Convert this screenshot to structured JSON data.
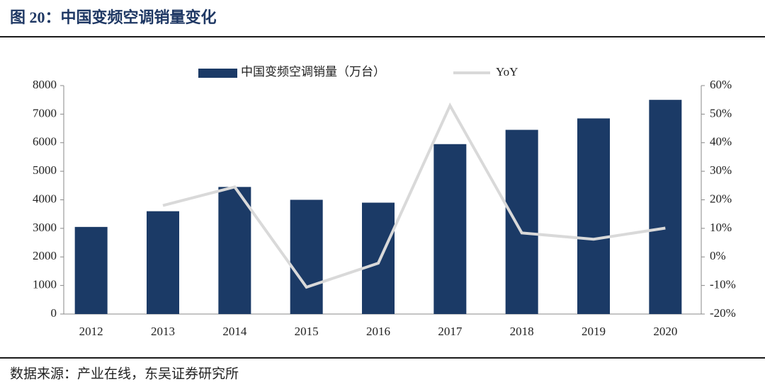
{
  "chart_data": {
    "type": "bar-line",
    "title": "图 20：中国变频空调销量变化",
    "source": "数据来源：产业在线，东吴证券研究所",
    "categories": [
      "2012",
      "2013",
      "2014",
      "2015",
      "2016",
      "2017",
      "2018",
      "2019",
      "2020"
    ],
    "series": [
      {
        "name": "中国变频空调销量（万台）",
        "type": "bar",
        "color": "#1b3a66",
        "values": [
          3050,
          3600,
          4450,
          4000,
          3900,
          5950,
          6450,
          6850,
          7500
        ]
      },
      {
        "name": "YoY",
        "type": "line",
        "axis": "y2",
        "color": "#d9d9d9",
        "values": [
          null,
          18,
          24.5,
          -10.6,
          -2.2,
          53,
          8.4,
          6.2,
          10.1
        ]
      }
    ],
    "ylim": [
      0,
      8000
    ],
    "yticks": [
      0,
      1000,
      2000,
      3000,
      4000,
      5000,
      6000,
      7000,
      8000
    ],
    "y2lim": [
      -20,
      60
    ],
    "y2ticks": [
      {
        "value": -20,
        "label": "-20%"
      },
      {
        "value": -10,
        "label": "-10%"
      },
      {
        "value": 0,
        "label": "0%"
      },
      {
        "value": 10,
        "label": "10%"
      },
      {
        "value": 20,
        "label": "20%"
      },
      {
        "value": 30,
        "label": "30%"
      },
      {
        "value": 40,
        "label": "40%"
      },
      {
        "value": 50,
        "label": "50%"
      },
      {
        "value": 60,
        "label": "60%"
      }
    ],
    "grid": false
  }
}
